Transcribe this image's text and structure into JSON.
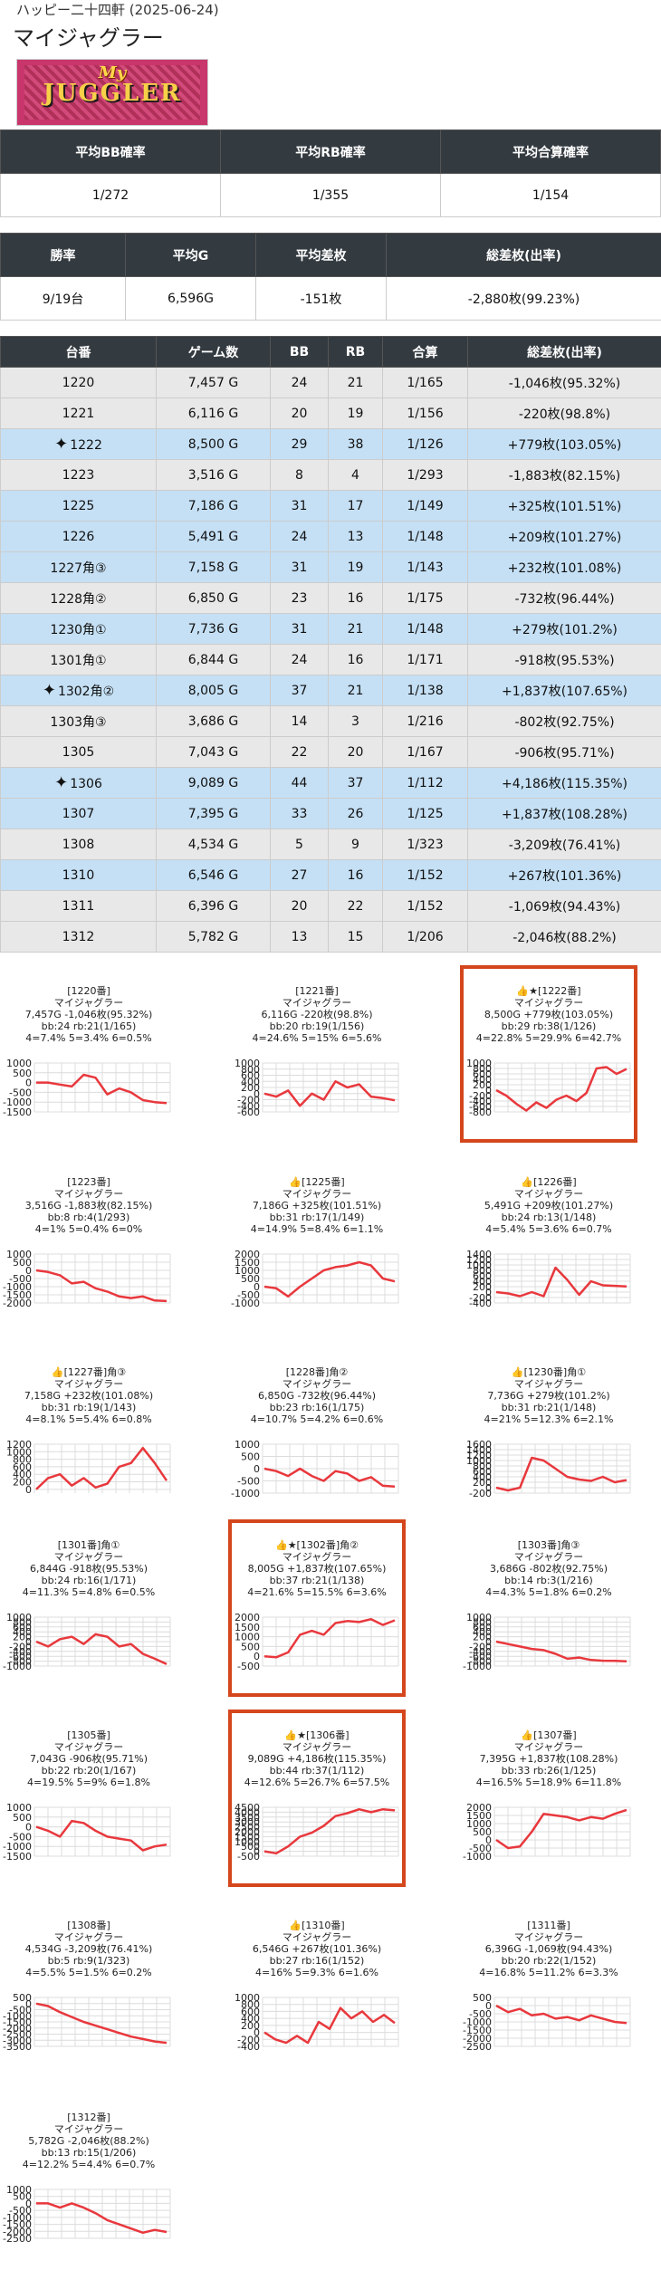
{
  "header": {
    "store": "ハッピー二十四軒 (2025-06-24)",
    "title": "マイジャグラー"
  },
  "logo": {
    "line1": "My",
    "line2": "JUGGLER"
  },
  "summary1": {
    "headers": [
      "平均BB確率",
      "平均RB確率",
      "平均合算確率"
    ],
    "values": [
      "1/272",
      "1/355",
      "1/154"
    ]
  },
  "summary2": {
    "headers": [
      "勝率",
      "平均G",
      "平均差枚",
      "総差枚(出率)"
    ],
    "values": [
      "9/19台",
      "6,596G",
      "-151枚",
      "-2,880枚(99.23%)"
    ]
  },
  "table": {
    "headers": [
      "台番",
      "ゲーム数",
      "BB",
      "RB",
      "合算",
      "総差枚(出率)"
    ],
    "rows": [
      {
        "no": "1220",
        "games": "7,457 G",
        "bb": "24",
        "rb": "21",
        "total": "1/165",
        "diff": "-1,046枚(95.32%)",
        "style": "g",
        "star": false
      },
      {
        "no": "1221",
        "games": "6,116 G",
        "bb": "20",
        "rb": "19",
        "total": "1/156",
        "diff": "-220枚(98.8%)",
        "style": "g",
        "star": false
      },
      {
        "no": "1222",
        "games": "8,500 G",
        "bb": "29",
        "rb": "38",
        "total": "1/126",
        "diff": "+779枚(103.05%)",
        "style": "b",
        "star": true
      },
      {
        "no": "1223",
        "games": "3,516 G",
        "bb": "8",
        "rb": "4",
        "total": "1/293",
        "diff": "-1,883枚(82.15%)",
        "style": "g",
        "star": false
      },
      {
        "no": "1225",
        "games": "7,186 G",
        "bb": "31",
        "rb": "17",
        "total": "1/149",
        "diff": "+325枚(101.51%)",
        "style": "b",
        "star": false
      },
      {
        "no": "1226",
        "games": "5,491 G",
        "bb": "24",
        "rb": "13",
        "total": "1/148",
        "diff": "+209枚(101.27%)",
        "style": "b",
        "star": false
      },
      {
        "no": "1227角③",
        "games": "7,158 G",
        "bb": "31",
        "rb": "19",
        "total": "1/143",
        "diff": "+232枚(101.08%)",
        "style": "b",
        "star": false
      },
      {
        "no": "1228角②",
        "games": "6,850 G",
        "bb": "23",
        "rb": "16",
        "total": "1/175",
        "diff": "-732枚(96.44%)",
        "style": "g",
        "star": false
      },
      {
        "no": "1230角①",
        "games": "7,736 G",
        "bb": "31",
        "rb": "21",
        "total": "1/148",
        "diff": "+279枚(101.2%)",
        "style": "b",
        "star": false
      },
      {
        "no": "1301角①",
        "games": "6,844 G",
        "bb": "24",
        "rb": "16",
        "total": "1/171",
        "diff": "-918枚(95.53%)",
        "style": "g",
        "star": false
      },
      {
        "no": "1302角②",
        "games": "8,005 G",
        "bb": "37",
        "rb": "21",
        "total": "1/138",
        "diff": "+1,837枚(107.65%)",
        "style": "b",
        "star": true
      },
      {
        "no": "1303角③",
        "games": "3,686 G",
        "bb": "14",
        "rb": "3",
        "total": "1/216",
        "diff": "-802枚(92.75%)",
        "style": "g",
        "star": false
      },
      {
        "no": "1305",
        "games": "7,043 G",
        "bb": "22",
        "rb": "20",
        "total": "1/167",
        "diff": "-906枚(95.71%)",
        "style": "g",
        "star": false
      },
      {
        "no": "1306",
        "games": "9,089 G",
        "bb": "44",
        "rb": "37",
        "total": "1/112",
        "diff": "+4,186枚(115.35%)",
        "style": "b",
        "star": true
      },
      {
        "no": "1307",
        "games": "7,395 G",
        "bb": "33",
        "rb": "26",
        "total": "1/125",
        "diff": "+1,837枚(108.28%)",
        "style": "b",
        "star": false
      },
      {
        "no": "1308",
        "games": "4,534 G",
        "bb": "5",
        "rb": "9",
        "total": "1/323",
        "diff": "-3,209枚(76.41%)",
        "style": "g",
        "star": false
      },
      {
        "no": "1310",
        "games": "6,546 G",
        "bb": "27",
        "rb": "16",
        "total": "1/152",
        "diff": "+267枚(101.36%)",
        "style": "b",
        "star": false
      },
      {
        "no": "1311",
        "games": "6,396 G",
        "bb": "20",
        "rb": "22",
        "total": "1/152",
        "diff": "-1,069枚(94.43%)",
        "style": "g",
        "star": false
      },
      {
        "no": "1312",
        "games": "5,782 G",
        "bb": "13",
        "rb": "15",
        "total": "1/206",
        "diff": "-2,046枚(88.2%)",
        "style": "g",
        "star": false
      }
    ]
  },
  "colors": {
    "line": "#e8383d",
    "highlight": "#d4461c",
    "header_bg": "#333a40",
    "row_gray": "#e8e8e8",
    "row_blue": "#c5e0f5"
  },
  "cards": [
    {
      "title": "[1220番]",
      "model": "マイジャグラー",
      "l1": "7,457G -1,046枚(95.32%)",
      "l2": "bb:24 rb:21(1/165)",
      "l3": "4=7.4% 5=3.4% 6=0.5%",
      "ticks": [
        "1000",
        "500",
        "0",
        "-500",
        "-1000",
        "-1500"
      ],
      "lo": -1500,
      "hi": 1000,
      "values": [
        0,
        0,
        -100,
        -200,
        400,
        250,
        -600,
        -300,
        -500,
        -900,
        -1000,
        -1046
      ],
      "hl": false,
      "thumb": false
    },
    {
      "title": "[1221番]",
      "model": "マイジャグラー",
      "l1": "6,116G -220枚(98.8%)",
      "l2": "bb:20 rb:19(1/156)",
      "l3": "4=24.6% 5=15% 6=5.6%",
      "ticks": [
        "1000",
        "800",
        "600",
        "400",
        "200",
        "0",
        "-200",
        "-400",
        "-600"
      ],
      "lo": -600,
      "hi": 1000,
      "values": [
        0,
        -100,
        100,
        -400,
        0,
        -200,
        400,
        200,
        300,
        -100,
        -150,
        -220
      ],
      "hl": false,
      "thumb": false
    },
    {
      "title": "★[1222番]",
      "model": "マイジャグラー",
      "l1": "8,500G +779枚(103.05%)",
      "l2": "bb:29 rb:38(1/126)",
      "l3": "4=22.8% 5=29.9% 6=42.7%",
      "ticks": [
        "1000",
        "800",
        "600",
        "400",
        "200",
        "0",
        "-200",
        "-400",
        "-600",
        "-800"
      ],
      "lo": -800,
      "hi": 1000,
      "values": [
        0,
        -200,
        -500,
        -750,
        -450,
        -650,
        -350,
        -200,
        -400,
        -100,
        800,
        850,
        600,
        779
      ],
      "hl": true,
      "thumb": true
    },
    {
      "title": "[1223番]",
      "model": "マイジャグラー",
      "l1": "3,516G -1,883枚(82.15%)",
      "l2": "bb:8 rb:4(1/293)",
      "l3": "4=1% 5=0.4% 6=0%",
      "ticks": [
        "1000",
        "500",
        "0",
        "-500",
        "-1000",
        "-1500",
        "-2000"
      ],
      "lo": -2000,
      "hi": 1000,
      "values": [
        0,
        -100,
        -300,
        -800,
        -700,
        -1100,
        -1300,
        -1600,
        -1700,
        -1600,
        -1850,
        -1883
      ],
      "hl": false,
      "thumb": false
    },
    {
      "title": "[1225番]",
      "model": "マイジャグラー",
      "l1": "7,186G +325枚(101.51%)",
      "l2": "bb:31 rb:17(1/149)",
      "l3": "4=14.9% 5=8.4% 6=1.1%",
      "ticks": [
        "2000",
        "1500",
        "1000",
        "500",
        "0",
        "-500",
        "-1000"
      ],
      "lo": -1000,
      "hi": 2000,
      "values": [
        0,
        -100,
        -600,
        0,
        500,
        1000,
        1200,
        1300,
        1500,
        1300,
        500,
        325
      ],
      "hl": false,
      "thumb": true
    },
    {
      "title": "[1226番]",
      "model": "マイジャグラー",
      "l1": "5,491G +209枚(101.27%)",
      "l2": "bb:24 rb:13(1/148)",
      "l3": "4=5.4% 5=3.6% 6=0.7%",
      "ticks": [
        "1400",
        "1200",
        "1000",
        "800",
        "600",
        "400",
        "200",
        "0",
        "-200",
        "-400"
      ],
      "lo": -400,
      "hi": 1400,
      "values": [
        0,
        -50,
        -150,
        0,
        -150,
        900,
        450,
        -100,
        400,
        250,
        230,
        209
      ],
      "hl": false,
      "thumb": true
    },
    {
      "title": "[1227番]角③",
      "model": "マイジャグラー",
      "l1": "7,158G +232枚(101.08%)",
      "l2": "bb:31 rb:19(1/143)",
      "l3": "4=8.1% 5=5.4% 6=0.8%",
      "ticks": [
        "1200",
        "1000",
        "800",
        "600",
        "400",
        "200",
        "0"
      ],
      "lo": -100,
      "hi": 1200,
      "values": [
        0,
        300,
        400,
        100,
        300,
        50,
        150,
        600,
        700,
        1100,
        700,
        232
      ],
      "hl": false,
      "thumb": true
    },
    {
      "title": "[1228番]角②",
      "model": "マイジャグラー",
      "l1": "6,850G -732枚(96.44%)",
      "l2": "bb:23 rb:16(1/175)",
      "l3": "4=10.7% 5=4.2% 6=0.6%",
      "ticks": [
        "1000",
        "500",
        "0",
        "-500",
        "-1000"
      ],
      "lo": -1000,
      "hi": 1000,
      "values": [
        0,
        -100,
        -300,
        0,
        -300,
        -500,
        -100,
        -200,
        -500,
        -350,
        -700,
        -732
      ],
      "hl": false,
      "thumb": false
    },
    {
      "title": "[1230番]角①",
      "model": "マイジャグラー",
      "l1": "7,736G +279枚(101.2%)",
      "l2": "bb:31 rb:21(1/148)",
      "l3": "4=21% 5=12.3% 6=2.1%",
      "ticks": [
        "1600",
        "1400",
        "1200",
        "1000",
        "800",
        "600",
        "400",
        "200",
        "0",
        "-200"
      ],
      "lo": -200,
      "hi": 1600,
      "values": [
        0,
        -100,
        0,
        1100,
        1000,
        700,
        400,
        300,
        250,
        400,
        200,
        279
      ],
      "hl": false,
      "thumb": true
    },
    {
      "title": "[1301番]角①",
      "model": "マイジャグラー",
      "l1": "6,844G -918枚(95.53%)",
      "l2": "bb:24 rb:16(1/171)",
      "l3": "4=11.3% 5=4.8% 6=0.5%",
      "ticks": [
        "1000",
        "800",
        "600",
        "400",
        "200",
        "0",
        "-200",
        "-400",
        "-600",
        "-800",
        "-1000"
      ],
      "lo": -1000,
      "hi": 1000,
      "values": [
        0,
        -200,
        100,
        200,
        -100,
        300,
        200,
        -200,
        -100,
        -500,
        -700,
        -918
      ],
      "hl": false,
      "thumb": false
    },
    {
      "title": "★[1302番]角②",
      "model": "マイジャグラー",
      "l1": "8,005G +1,837枚(107.65%)",
      "l2": "bb:37 rb:21(1/138)",
      "l3": "4=21.6% 5=15.5% 6=3.6%",
      "ticks": [
        "2000",
        "1500",
        "1000",
        "500",
        "0",
        "-500"
      ],
      "lo": -500,
      "hi": 2000,
      "values": [
        0,
        -50,
        200,
        1100,
        1300,
        1100,
        1700,
        1800,
        1750,
        1900,
        1600,
        1837
      ],
      "hl": true,
      "thumb": true
    },
    {
      "title": "[1303番]角③",
      "model": "マイジャグラー",
      "l1": "3,686G -802枚(92.75%)",
      "l2": "bb:14 rb:3(1/216)",
      "l3": "4=4.3% 5=1.8% 6=0.2%",
      "ticks": [
        "1000",
        "800",
        "600",
        "400",
        "200",
        "0",
        "-200",
        "-400",
        "-600",
        "-800",
        "-1000"
      ],
      "lo": -1000,
      "hi": 1000,
      "values": [
        0,
        -100,
        -200,
        -300,
        -350,
        -500,
        -700,
        -650,
        -750,
        -780,
        -790,
        -802
      ],
      "hl": false,
      "thumb": false
    },
    {
      "title": "[1305番]",
      "model": "マイジャグラー",
      "l1": "7,043G -906枚(95.71%)",
      "l2": "bb:22 rb:20(1/167)",
      "l3": "4=19.5% 5=9% 6=1.8%",
      "ticks": [
        "1000",
        "500",
        "0",
        "-500",
        "-1000",
        "-1500"
      ],
      "lo": -1500,
      "hi": 1000,
      "values": [
        0,
        -200,
        -500,
        300,
        200,
        -200,
        -500,
        -600,
        -700,
        -1200,
        -1000,
        -906
      ],
      "hl": false,
      "thumb": false
    },
    {
      "title": "★[1306番]",
      "model": "マイジャグラー",
      "l1": "9,089G +4,186枚(115.35%)",
      "l2": "bb:44 rb:37(1/112)",
      "l3": "4=12.6% 5=26.7% 6=57.5%",
      "ticks": [
        "4500",
        "4000",
        "3500",
        "3000",
        "2500",
        "2000",
        "1500",
        "1000",
        "500",
        "0",
        "-500"
      ],
      "lo": -500,
      "hi": 4500,
      "values": [
        0,
        -200,
        500,
        1500,
        1900,
        2600,
        3600,
        3900,
        4300,
        4000,
        4300,
        4186
      ],
      "hl": true,
      "thumb": true
    },
    {
      "title": "[1307番]",
      "model": "マイジャグラー",
      "l1": "7,395G +1,837枚(108.28%)",
      "l2": "bb:33 rb:26(1/125)",
      "l3": "4=16.5% 5=18.9% 6=11.8%",
      "ticks": [
        "2000",
        "1500",
        "1000",
        "500",
        "0",
        "-500",
        "-1000"
      ],
      "lo": -1000,
      "hi": 2000,
      "values": [
        0,
        -500,
        -400,
        500,
        1600,
        1500,
        1400,
        1200,
        1400,
        1300,
        1600,
        1837
      ],
      "hl": false,
      "thumb": true
    },
    {
      "title": "[1308番]",
      "model": "マイジャグラー",
      "l1": "4,534G -3,209枚(76.41%)",
      "l2": "bb:5 rb:9(1/323)",
      "l3": "4=5.5% 5=1.5% 6=0.2%",
      "ticks": [
        "500",
        "0",
        "-500",
        "-1000",
        "-1500",
        "-2000",
        "-2500",
        "-3000",
        "-3500"
      ],
      "lo": -3500,
      "hi": 500,
      "values": [
        0,
        -200,
        -700,
        -1100,
        -1500,
        -1800,
        -2100,
        -2400,
        -2700,
        -2900,
        -3100,
        -3209
      ],
      "hl": false,
      "thumb": false
    },
    {
      "title": "[1310番]",
      "model": "マイジャグラー",
      "l1": "6,546G +267枚(101.36%)",
      "l2": "bb:27 rb:16(1/152)",
      "l3": "4=16% 5=9.3% 6=1.6%",
      "ticks": [
        "1000",
        "800",
        "600",
        "400",
        "200",
        "0",
        "-200",
        "-400"
      ],
      "lo": -400,
      "hi": 1000,
      "values": [
        0,
        -200,
        -300,
        -100,
        -300,
        300,
        100,
        700,
        400,
        600,
        300,
        500,
        267
      ],
      "hl": false,
      "thumb": true
    },
    {
      "title": "[1311番]",
      "model": "マイジャグラー",
      "l1": "6,396G -1,069枚(94.43%)",
      "l2": "bb:20 rb:22(1/152)",
      "l3": "4=16.8% 5=11.2% 6=3.3%",
      "ticks": [
        "500",
        "0",
        "-500",
        "-1000",
        "-1500",
        "-2000",
        "-2500"
      ],
      "lo": -2500,
      "hi": 500,
      "values": [
        0,
        -400,
        -200,
        -600,
        -500,
        -800,
        -700,
        -900,
        -600,
        -800,
        -1000,
        -1069
      ],
      "hl": false,
      "thumb": false
    },
    {
      "title": "[1312番]",
      "model": "マイジャグラー",
      "l1": "5,782G -2,046枚(88.2%)",
      "l2": "bb:13 rb:15(1/206)",
      "l3": "4=12.2% 5=4.4% 6=0.7%",
      "ticks": [
        "1000",
        "500",
        "0",
        "-500",
        "-1000",
        "-1500",
        "-2000",
        "-2500"
      ],
      "lo": -2500,
      "hi": 1000,
      "values": [
        0,
        0,
        -300,
        0,
        -300,
        -700,
        -1200,
        -1500,
        -1800,
        -2100,
        -1900,
        -2046
      ],
      "hl": false,
      "thumb": false
    }
  ]
}
